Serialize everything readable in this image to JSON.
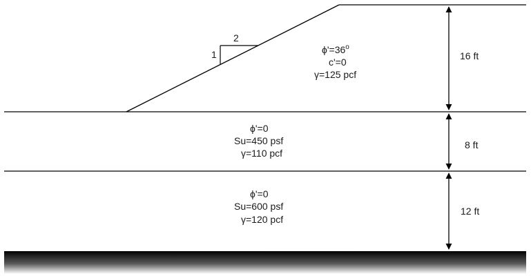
{
  "slope_ratio": {
    "vertical": "1",
    "horizontal": "2"
  },
  "embankment": {
    "phi": "ϕ'=36",
    "phi_unit": "o",
    "cohesion": "c'=0",
    "unit_weight": "γ=125 pcf",
    "height": "16 ft"
  },
  "clay_layer_1": {
    "phi": "ϕ'=0",
    "strength": "Su=450 psf",
    "unit_weight": "γ=110 pcf",
    "thickness": "8 ft"
  },
  "clay_layer_2": {
    "phi": "ϕ'=0",
    "strength": "Su=600 psf",
    "unit_weight": "γ=120 pcf",
    "thickness": "12 ft"
  },
  "colors": {
    "line": "#000000",
    "base_dark": "#000000",
    "base_light": "#ffffff"
  }
}
